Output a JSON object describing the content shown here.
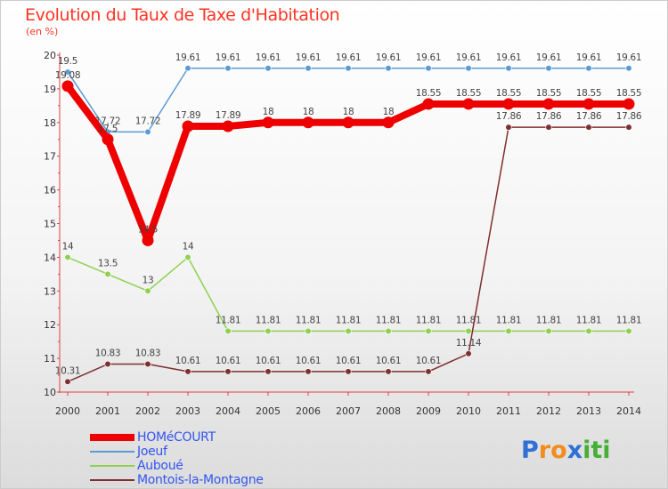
{
  "chart_data": {
    "type": "line",
    "title": "Evolution du Taux de Taxe d'Habitation",
    "subtitle": "(en %)",
    "ylim": [
      10,
      20
    ],
    "yticks": [
      "10",
      "11",
      "12",
      "13",
      "14",
      "15",
      "16",
      "17",
      "18",
      "19",
      "20"
    ],
    "x": [
      "2000",
      "2001",
      "2002",
      "2003",
      "2004",
      "2005",
      "2006",
      "2007",
      "2008",
      "2009",
      "2010",
      "2011",
      "2012",
      "2013",
      "2014"
    ],
    "series": [
      {
        "name": "Joeuf",
        "color": "#5b9bd5",
        "values": [
          19.5,
          17.72,
          17.72,
          19.61,
          19.61,
          19.61,
          19.61,
          19.61,
          19.61,
          19.61,
          19.61,
          19.61,
          19.61,
          19.61,
          19.61
        ],
        "labels": [
          "19.5",
          "17.72",
          "17.72",
          "19.61",
          "19.61",
          "19.61",
          "19.61",
          "19.61",
          "19.61",
          "19.61",
          "19.61",
          "19.61",
          "19.61",
          "19.61",
          "19.61"
        ]
      },
      {
        "name": "Auboué",
        "color": "#8ed14f",
        "values": [
          14,
          13.5,
          13,
          14,
          11.81,
          11.81,
          11.81,
          11.81,
          11.81,
          11.81,
          11.81,
          11.81,
          11.81,
          11.81,
          11.81
        ],
        "labels": [
          "14",
          "13.5",
          "13",
          "14",
          "11.81",
          "11.81",
          "11.81",
          "11.81",
          "11.81",
          "11.81",
          "11.81",
          "11.81",
          "11.81",
          "11.81",
          "11.81"
        ]
      },
      {
        "name": "Montois-la-Montagne",
        "color": "#7f2f2f",
        "values": [
          10.31,
          10.83,
          10.83,
          10.61,
          10.61,
          10.61,
          10.61,
          10.61,
          10.61,
          10.61,
          11.14,
          17.86,
          17.86,
          17.86,
          17.86
        ],
        "labels": [
          "10.31",
          "10.83",
          "10.83",
          "10.61",
          "10.61",
          "10.61",
          "10.61",
          "10.61",
          "10.61",
          "10.61",
          "11.14",
          "17.86",
          "17.86",
          "17.86",
          "17.86"
        ]
      },
      {
        "name": "HOMéCOURT",
        "color": "#ee0000",
        "values": [
          19.08,
          17.5,
          14.5,
          17.89,
          17.89,
          18,
          18,
          18,
          18,
          18.55,
          18.55,
          18.55,
          18.55,
          18.55,
          18.55
        ],
        "labels": [
          "19.08",
          "17.5",
          "14.5",
          "17.89",
          "17.89",
          "18",
          "18",
          "18",
          "18",
          "18.55",
          "18.55",
          "18.55",
          "18.55",
          "18.55",
          "18.55"
        ]
      }
    ],
    "legend": [
      "HOMéCOURT",
      "Joeuf",
      "Auboué",
      "Montois-la-Montagne"
    ],
    "legend_position": "bottom-left",
    "grid": false
  },
  "brand": {
    "letters": [
      "P",
      "r",
      "o",
      "x",
      "i",
      "t",
      "i"
    ],
    "colors": [
      "#2f6fd6",
      "#f28c1e",
      "#f28c1e",
      "#2f6fd6",
      "#45b035",
      "#45b035",
      "#45b035"
    ]
  }
}
